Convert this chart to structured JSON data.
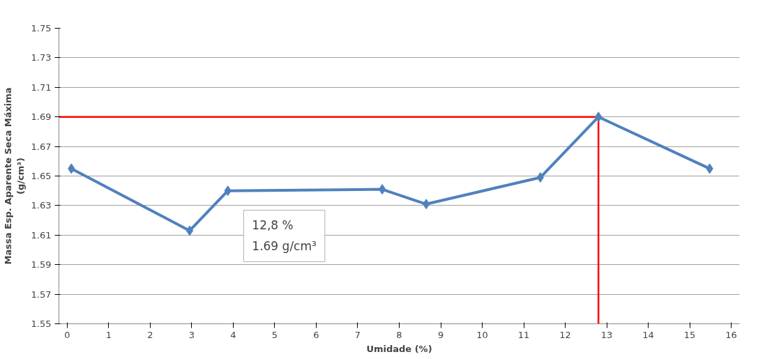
{
  "chart_data": {
    "type": "line",
    "xlabel": "Umidade (%)",
    "ylabel": "Massa Esp. Aparente Seca Máxima\n(g/cm³)",
    "x": [
      0.1,
      2.95,
      3.87,
      7.59,
      8.65,
      11.4,
      12.8,
      15.48
    ],
    "series": [
      {
        "color": "#4f81bd",
        "values": [
          1.655,
          1.613,
          1.64,
          1.641,
          1.631,
          1.649,
          1.69,
          1.655
        ]
      }
    ],
    "xlim": [
      -0.2,
      16.2
    ],
    "xticks": [
      0,
      1,
      2,
      3,
      4,
      5,
      6,
      7,
      8,
      9,
      10,
      11,
      12,
      13,
      14,
      15,
      16
    ],
    "ylim": [
      1.55,
      1.75
    ],
    "yticks": [
      1.55,
      1.57,
      1.59,
      1.61,
      1.63,
      1.65,
      1.67,
      1.69,
      1.71,
      1.73,
      1.75
    ],
    "grid": "y",
    "marker": "diamond",
    "line_style": "solid",
    "ref_lines": [
      {
        "axis": "y",
        "value": 1.69,
        "color": "#ff0000"
      },
      {
        "axis": "x",
        "value": 12.8,
        "color": "#ff0000"
      }
    ],
    "annotations": [
      "12,8 %\n1.69 g/cm³"
    ]
  }
}
